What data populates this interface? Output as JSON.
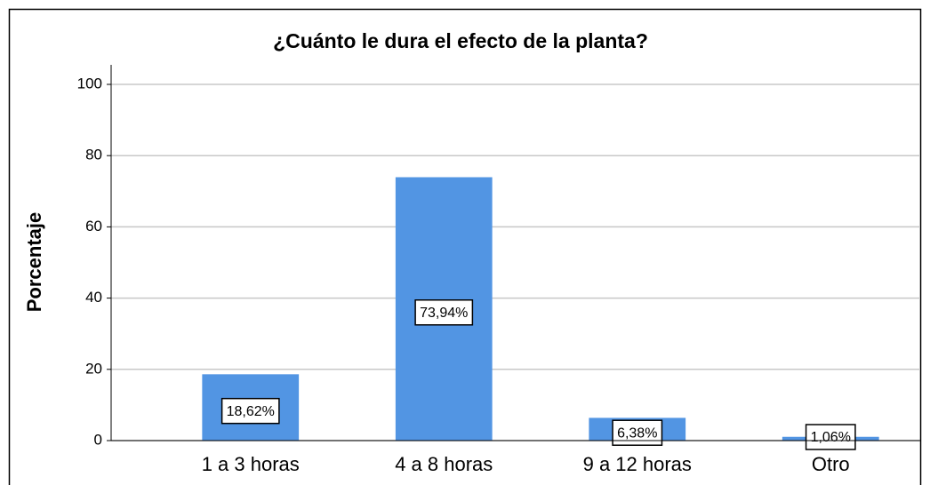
{
  "chart_data": {
    "type": "bar",
    "title": "¿Cuánto le dura el efecto de la planta?",
    "y_label": "Porcentaje",
    "categories": [
      "1 a 3 horas",
      "4 a 8 horas",
      "9 a 12 horas",
      "Otro"
    ],
    "values": [
      18.62,
      73.94,
      6.38,
      1.06
    ],
    "value_labels": [
      "18,62%",
      "73,94%",
      "6,38%",
      "1,06%"
    ],
    "color": "#5295e3",
    "ylim": [
      0,
      100
    ],
    "yticks": [
      0,
      20,
      40,
      60,
      80,
      100
    ],
    "grid": true
  }
}
